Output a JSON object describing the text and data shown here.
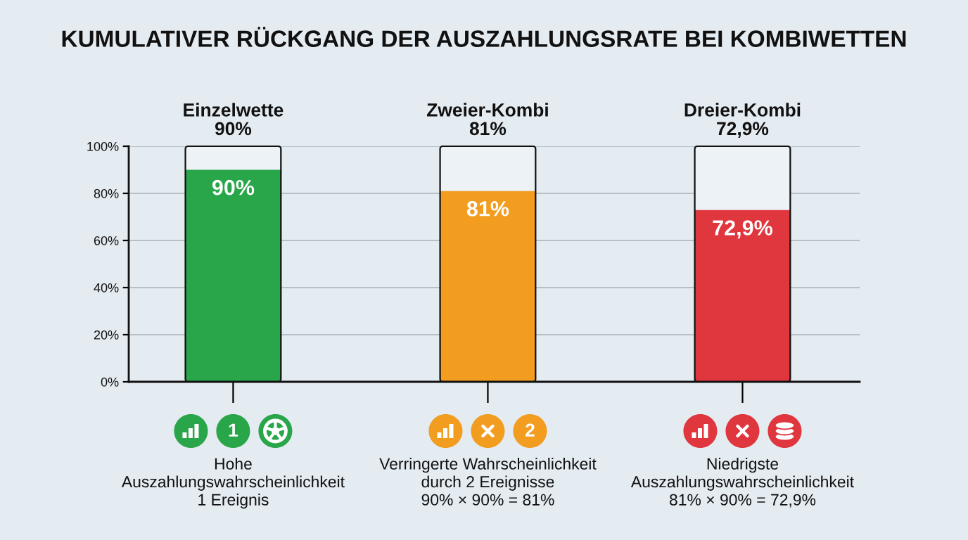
{
  "chart_data": {
    "type": "bar",
    "title": "KUMULATIVER RÜCKGANG DER AUSZAHLUNGSRATE BEI KOMBIWETTEN",
    "categories": [
      "Einzelwette\n90%",
      "Zweier-Kombi\n81%",
      "Dreier-Kombi\n72,9%"
    ],
    "values": [
      90,
      81,
      72.9
    ],
    "colors": [
      "#29a649",
      "#f29d1f",
      "#e0363e"
    ],
    "value_labels": [
      "90%",
      "81%",
      "72,9%"
    ],
    "ylim": [
      0,
      100
    ],
    "yticks": [
      {
        "value": 0,
        "label": "0%"
      },
      {
        "value": 20,
        "label": "20%"
      },
      {
        "value": 40,
        "label": "40%"
      },
      {
        "value": 60,
        "label": "60%"
      },
      {
        "value": 80,
        "label": "80%"
      },
      {
        "value": 100,
        "label": "100%"
      }
    ],
    "grid": "y",
    "annotations": [
      "Hohe\nAuszahlungswahrscheinlichkeit\n1 Ereignis",
      "Verringerte Wahrscheinlichkeit\ndurch 2 Ereignisse\n90% × 90% = 81%",
      "Niedrigste\nAuszahlungswahrscheinlichkeit\n81% × 90% = 72,9%",
      "1",
      "2"
    ]
  }
}
